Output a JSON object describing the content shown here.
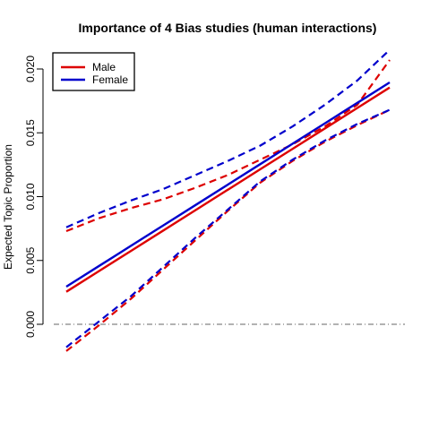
{
  "chart_data": {
    "type": "line",
    "title": "Importance of 4 Bias studies (human interactions)",
    "ylabel": "Expected Topic Proportion",
    "xlabel": "",
    "ylim": [
      -0.0025,
      0.0215
    ],
    "yticks": [
      0.0,
      0.005,
      0.01,
      0.015,
      0.02
    ],
    "ytick_labels": [
      "0.000",
      "0.005",
      "0.010",
      "0.015",
      "0.020"
    ],
    "x": [
      0,
      1
    ],
    "reference_line": 0,
    "legend": {
      "position": "top-left",
      "entries": [
        {
          "label": "Male",
          "color": "#dd0000"
        },
        {
          "label": "Female",
          "color": "#0000cc"
        }
      ]
    },
    "series": [
      {
        "name": "Male",
        "color": "#dd0000",
        "x": [
          0,
          0.1,
          0.2,
          0.3,
          0.4,
          0.5,
          0.6,
          0.7,
          0.8,
          0.9,
          1.0
        ],
        "estimate": [
          0.00255,
          0.00415,
          0.00575,
          0.00735,
          0.00895,
          0.01055,
          0.01215,
          0.01375,
          0.01535,
          0.01695,
          0.01855
        ],
        "upper": [
          0.0073,
          0.0083,
          0.0091,
          0.0098,
          0.0107,
          0.0117,
          0.0129,
          0.0141,
          0.0155,
          0.0172,
          0.0207
        ],
        "lower": [
          -0.0021,
          -0.0001,
          0.002,
          0.0043,
          0.0066,
          0.0089,
          0.0111,
          0.0128,
          0.0143,
          0.0156,
          0.0168
        ]
      },
      {
        "name": "Female",
        "color": "#0000cc",
        "x": [
          0,
          0.1,
          0.2,
          0.3,
          0.4,
          0.5,
          0.6,
          0.7,
          0.8,
          0.9,
          1.0
        ],
        "estimate": [
          0.00295,
          0.00455,
          0.00615,
          0.00775,
          0.00935,
          0.01095,
          0.01255,
          0.01415,
          0.01575,
          0.01735,
          0.01895
        ],
        "upper": [
          0.0076,
          0.0087,
          0.0097,
          0.0106,
          0.0117,
          0.0128,
          0.014,
          0.0155,
          0.0172,
          0.0191,
          0.0215
        ],
        "lower": [
          -0.0018,
          0.0002,
          0.0022,
          0.0045,
          0.0068,
          0.009,
          0.0112,
          0.0129,
          0.0144,
          0.0157,
          0.0168
        ]
      }
    ]
  }
}
